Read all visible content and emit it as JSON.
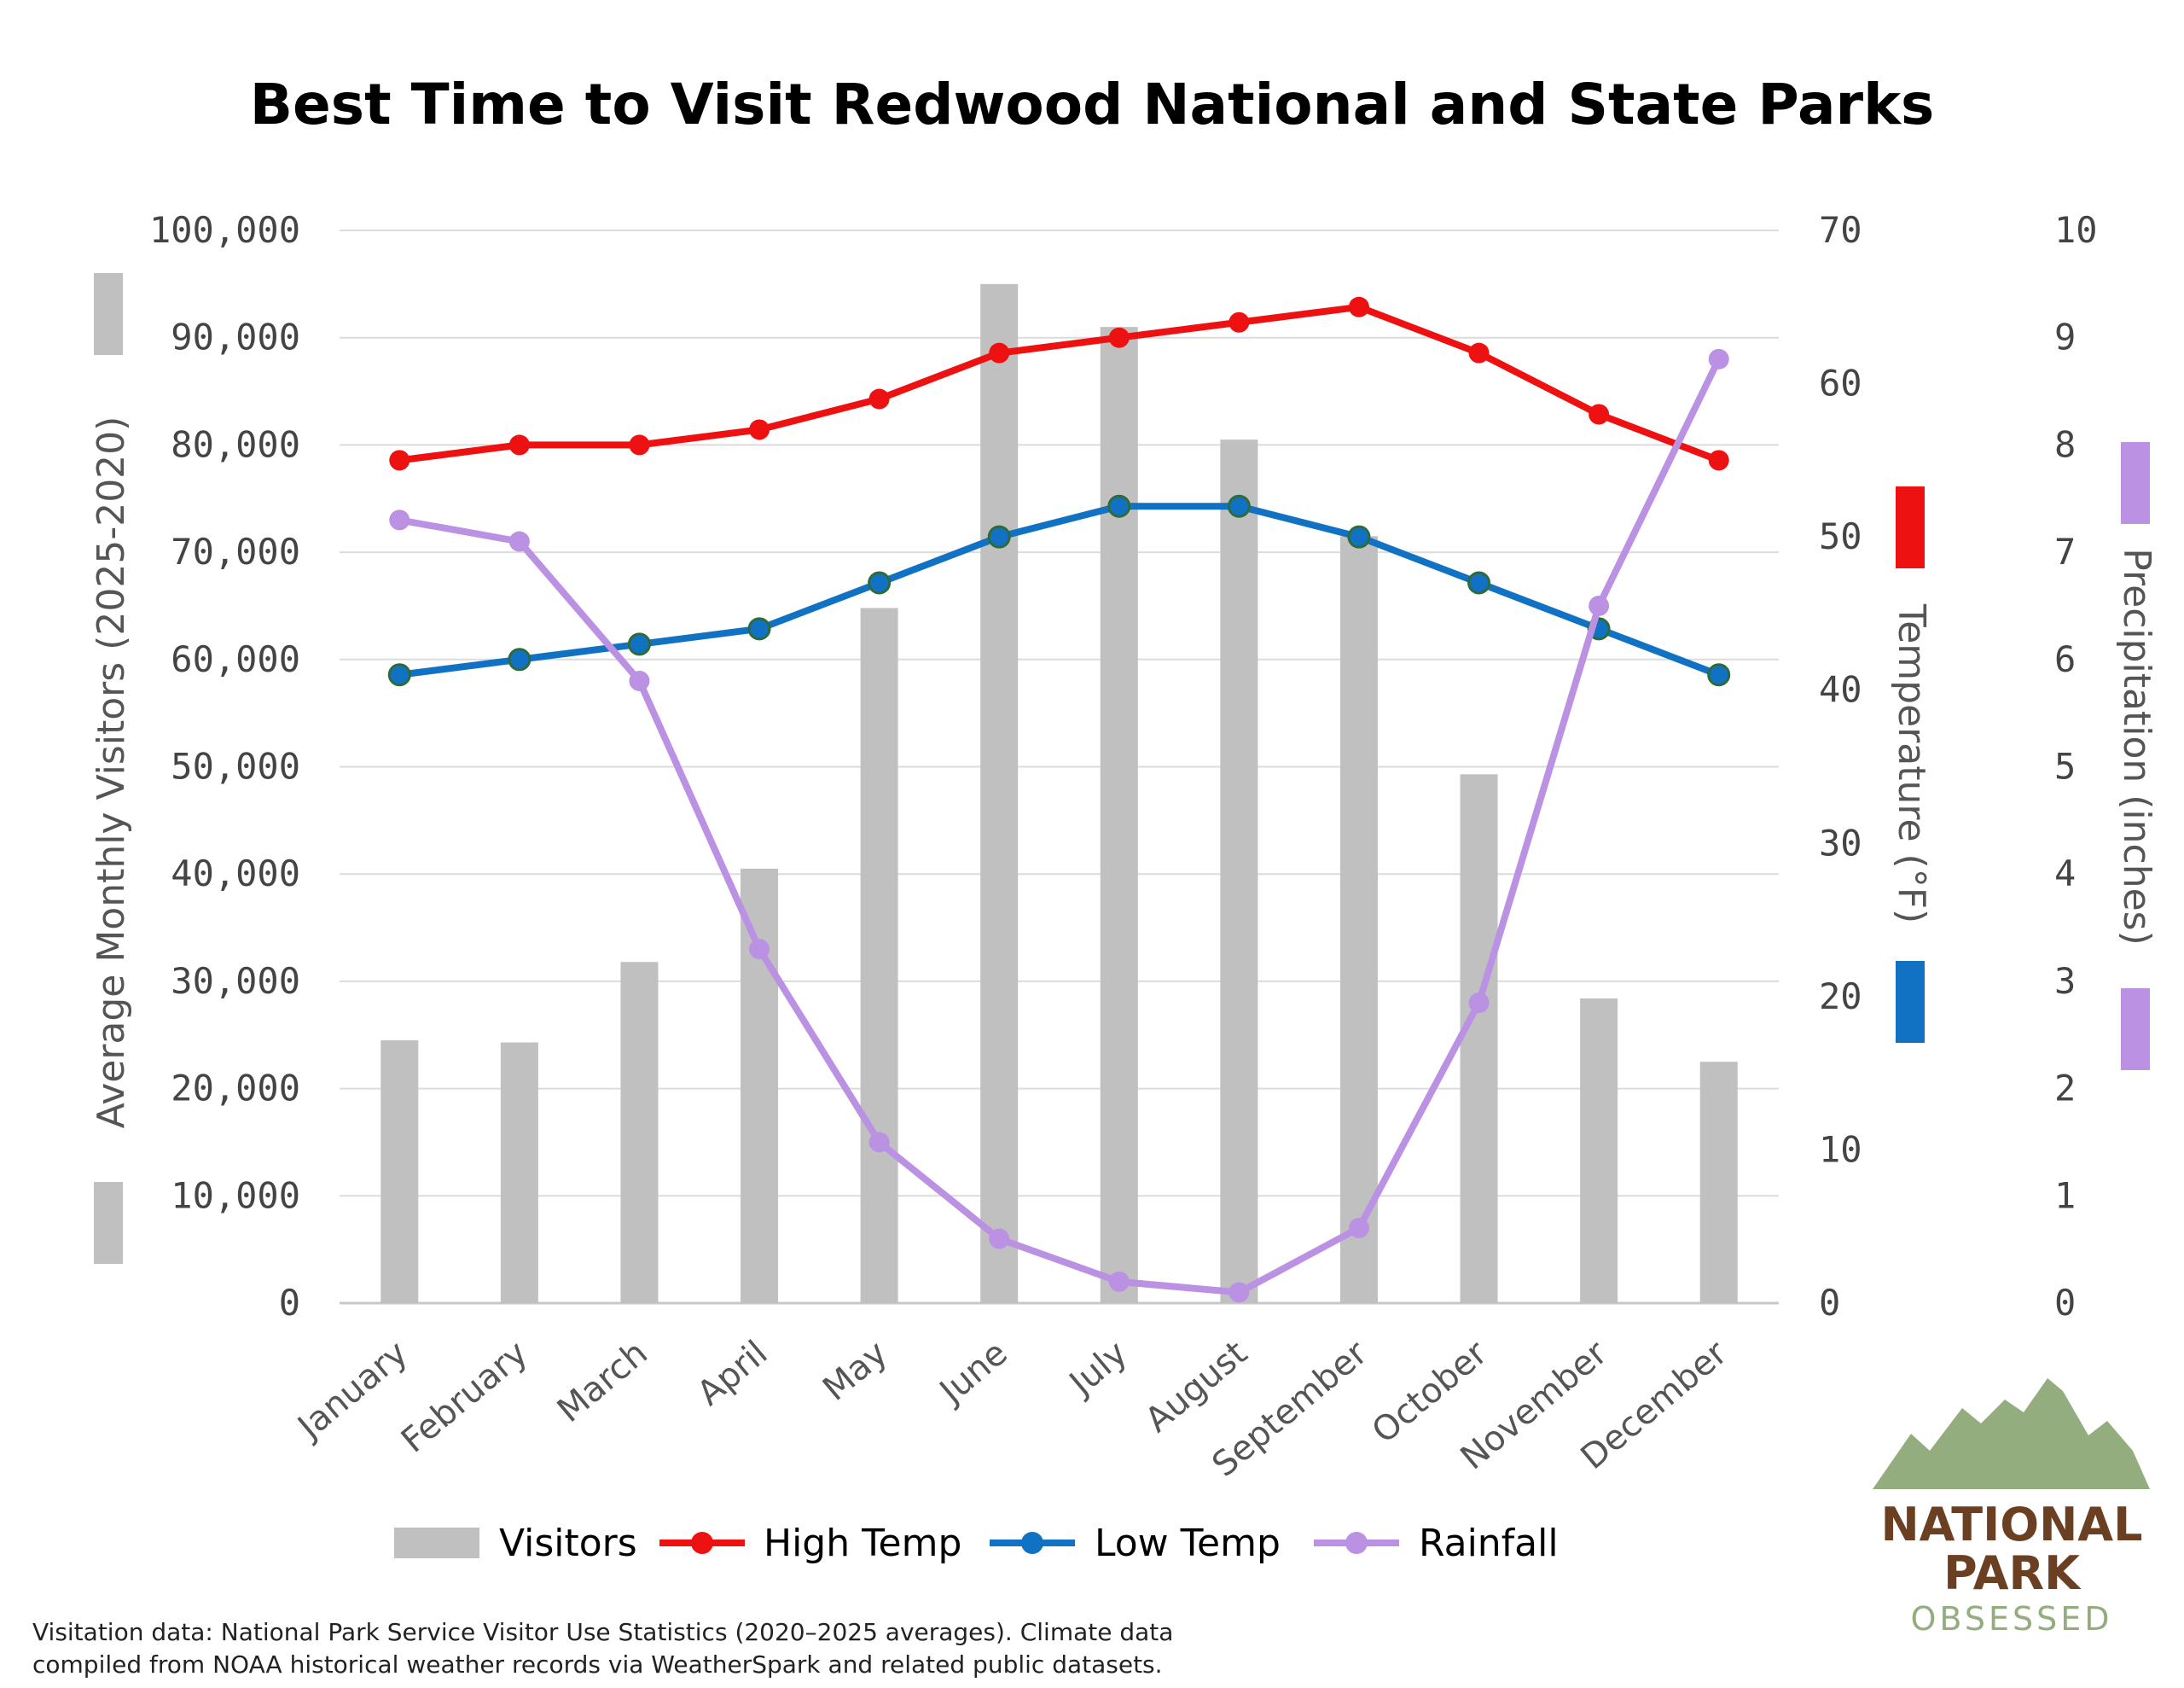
{
  "chart_data": {
    "type": "bar",
    "title": "Best Time to Visit Redwood National and State Parks",
    "categories": [
      "January",
      "February",
      "March",
      "April",
      "May",
      "June",
      "July",
      "August",
      "September",
      "October",
      "November",
      "December"
    ],
    "series": [
      {
        "name": "Visitors",
        "kind": "bar",
        "axis": "left",
        "color": "#c0c0c0",
        "values": [
          24500,
          24300,
          31800,
          40500,
          64800,
          95000,
          91000,
          80500,
          71500,
          49300,
          28400,
          22500
        ]
      },
      {
        "name": "High Temp",
        "kind": "line",
        "axis": "temperature",
        "color": "#ee1111",
        "values": [
          55,
          56,
          56,
          57,
          59,
          62,
          63,
          64,
          65,
          62,
          58,
          55
        ]
      },
      {
        "name": "Low Temp",
        "kind": "line",
        "axis": "temperature",
        "color": "#1172c4",
        "values": [
          41,
          42,
          43,
          44,
          47,
          50,
          52,
          52,
          50,
          47,
          44,
          41
        ]
      },
      {
        "name": "Rainfall",
        "kind": "line",
        "axis": "precipitation",
        "color": "#bb92e3",
        "values": [
          7.3,
          7.1,
          5.8,
          3.3,
          1.5,
          0.6,
          0.2,
          0.1,
          0.7,
          2.8,
          6.5,
          8.8
        ]
      }
    ],
    "axes": {
      "left": {
        "label": "Average Monthly Visitors (2025-2020)",
        "range": [
          0,
          100000
        ],
        "ticks": [
          "0",
          "10,000",
          "20,000",
          "30,000",
          "40,000",
          "50,000",
          "60,000",
          "70,000",
          "80,000",
          "90,000",
          "100,000"
        ]
      },
      "temperature": {
        "label": "Temperature (°F)",
        "range": [
          0,
          70
        ],
        "ticks": [
          "0",
          "10",
          "20",
          "30",
          "40",
          "50",
          "60",
          "70"
        ]
      },
      "precipitation": {
        "label": "Precipitation (inches)",
        "range": [
          0,
          10
        ],
        "ticks": [
          "0",
          "1",
          "2",
          "3",
          "4",
          "5",
          "6",
          "7",
          "8",
          "9",
          "10"
        ]
      }
    },
    "grid": true,
    "legend_position": "bottom"
  },
  "footnote": [
    "Visitation data: National Park Service Visitor Use Statistics (2020–2025 averages). Climate data",
    "compiled from NOAA historical weather records via WeatherSpark and related public datasets."
  ],
  "logo": {
    "line1": "NATIONAL",
    "line2": "PARK",
    "line3": "OBSESSED",
    "mountain_color": "#93ad7f",
    "text_color": "#6b3f22"
  }
}
